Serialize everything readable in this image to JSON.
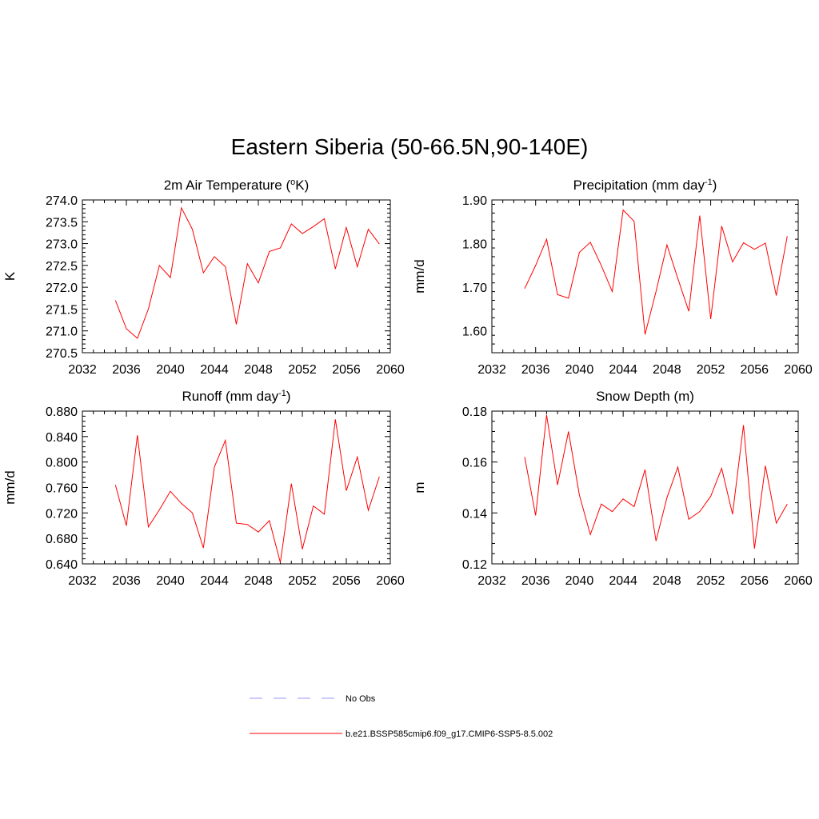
{
  "figure": {
    "title": "Eastern Siberia (50-66.5N,90-140E)"
  },
  "colors": {
    "model": "#ff0000",
    "obs": "#9999ff",
    "axis": "#000000"
  },
  "legend": {
    "items": [
      {
        "label": "No Obs",
        "style": "dashed",
        "color": "#9999ff"
      },
      {
        "label": "b.e21.BSSP585cmip6.f09_g17.CMIP6-SSP5-8.5.002",
        "style": "solid",
        "color": "#ff0000"
      }
    ]
  },
  "chart_data": [
    {
      "type": "line",
      "title": "2m Air Temperature (",
      "title_sup": "o",
      "title_after": "K)",
      "xlabel": "",
      "ylabel": "K",
      "xlim": [
        2032,
        2060
      ],
      "ylim": [
        270.5,
        274.0
      ],
      "xticks": [
        "2032",
        "2036",
        "2040",
        "2044",
        "2048",
        "2052",
        "2056",
        "2060"
      ],
      "yticks": [
        "270.5",
        "271.0",
        "271.5",
        "272.0",
        "272.5",
        "273.0",
        "273.5",
        "274.0"
      ],
      "grid": false,
      "series": [
        {
          "name": "b.e21.BSSP585cmip6.f09_g17.CMIP6-SSP5-8.5.002",
          "x": [
            2035,
            2036,
            2037,
            2038,
            2039,
            2040,
            2041,
            2042,
            2043,
            2044,
            2045,
            2046,
            2047,
            2048,
            2049,
            2050,
            2051,
            2052,
            2053,
            2054,
            2055,
            2056,
            2057,
            2058,
            2059
          ],
          "y": [
            271.7,
            271.05,
            270.83,
            271.5,
            272.5,
            272.22,
            273.82,
            273.33,
            272.33,
            272.7,
            272.47,
            271.15,
            272.54,
            272.1,
            272.82,
            272.9,
            273.45,
            273.23,
            273.39,
            273.57,
            272.42,
            273.37,
            272.47,
            273.33,
            272.99
          ]
        }
      ]
    },
    {
      "type": "line",
      "title": "Precipitation (mm day",
      "title_sup": "-1",
      "title_after": ")",
      "xlabel": "",
      "ylabel": "mm/d",
      "xlim": [
        2032,
        2060
      ],
      "ylim": [
        1.55,
        1.9
      ],
      "xticks": [
        "2032",
        "2036",
        "2040",
        "2044",
        "2048",
        "2052",
        "2056",
        "2060"
      ],
      "yticks": [
        "1.60",
        "1.70",
        "1.80",
        "1.90"
      ],
      "grid": false,
      "series": [
        {
          "name": "b.e21.BSSP585cmip6.f09_g17.CMIP6-SSP5-8.5.002",
          "x": [
            2035,
            2036,
            2037,
            2038,
            2039,
            2040,
            2041,
            2042,
            2043,
            2044,
            2045,
            2046,
            2047,
            2048,
            2049,
            2050,
            2051,
            2052,
            2053,
            2054,
            2055,
            2056,
            2057,
            2058,
            2059
          ],
          "y": [
            1.697,
            1.75,
            1.81,
            1.683,
            1.675,
            1.78,
            1.803,
            1.75,
            1.69,
            1.877,
            1.851,
            1.592,
            1.69,
            1.797,
            1.72,
            1.645,
            1.864,
            1.627,
            1.84,
            1.758,
            1.802,
            1.787,
            1.801,
            1.681,
            1.817
          ]
        }
      ]
    },
    {
      "type": "line",
      "title": "Runoff (mm day",
      "title_sup": "-1",
      "title_after": ")",
      "xlabel": "",
      "ylabel": "mm/d",
      "xlim": [
        2032,
        2060
      ],
      "ylim": [
        0.64,
        0.88
      ],
      "xticks": [
        "2032",
        "2036",
        "2040",
        "2044",
        "2048",
        "2052",
        "2056",
        "2060"
      ],
      "yticks": [
        "0.640",
        "0.680",
        "0.720",
        "0.760",
        "0.800",
        "0.840",
        "0.880"
      ],
      "grid": false,
      "series": [
        {
          "name": "b.e21.BSSP585cmip6.f09_g17.CMIP6-SSP5-8.5.002",
          "x": [
            2035,
            2036,
            2037,
            2038,
            2039,
            2040,
            2041,
            2042,
            2043,
            2044,
            2045,
            2046,
            2047,
            2048,
            2049,
            2050,
            2051,
            2052,
            2053,
            2054,
            2055,
            2056,
            2057,
            2058,
            2059
          ],
          "y": [
            0.764,
            0.7,
            0.842,
            0.698,
            0.725,
            0.754,
            0.735,
            0.72,
            0.665,
            0.792,
            0.834,
            0.704,
            0.702,
            0.69,
            0.708,
            0.642,
            0.766,
            0.663,
            0.731,
            0.718,
            0.867,
            0.755,
            0.808,
            0.724,
            0.777
          ]
        }
      ]
    },
    {
      "type": "line",
      "title": "Snow Depth (m)",
      "title_sup": "",
      "title_after": "",
      "xlabel": "",
      "ylabel": "m",
      "xlim": [
        2032,
        2060
      ],
      "ylim": [
        0.12,
        0.18
      ],
      "xticks": [
        "2032",
        "2036",
        "2040",
        "2044",
        "2048",
        "2052",
        "2056",
        "2060"
      ],
      "yticks": [
        "0.12",
        "0.14",
        "0.16",
        "0.18"
      ],
      "grid": false,
      "series": [
        {
          "name": "b.e21.BSSP585cmip6.f09_g17.CMIP6-SSP5-8.5.002",
          "x": [
            2035,
            2036,
            2037,
            2038,
            2039,
            2040,
            2041,
            2042,
            2043,
            2044,
            2045,
            2046,
            2047,
            2048,
            2049,
            2050,
            2051,
            2052,
            2053,
            2054,
            2055,
            2056,
            2057,
            2058,
            2059
          ],
          "y": [
            0.162,
            0.139,
            0.1785,
            0.151,
            0.172,
            0.147,
            0.1315,
            0.1435,
            0.1405,
            0.1455,
            0.1425,
            0.157,
            0.129,
            0.146,
            0.158,
            0.1375,
            0.1405,
            0.1465,
            0.1575,
            0.1395,
            0.1745,
            0.126,
            0.1585,
            0.136,
            0.1435
          ]
        }
      ]
    }
  ]
}
